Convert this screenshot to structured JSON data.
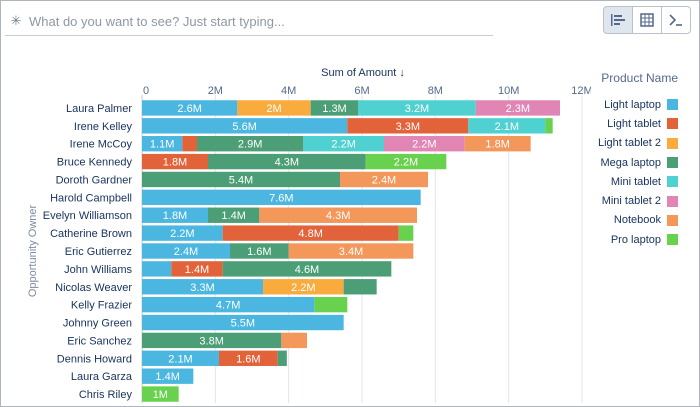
{
  "search": {
    "placeholder": "What do you want to see? Just start typing..."
  },
  "toolbar": {
    "buttons": [
      "chart-icon",
      "table-icon",
      "terminal-icon"
    ]
  },
  "colors": {
    "Light laptop": "#4bb6e0",
    "Light tablet": "#e2633a",
    "Light tablet 2": "#f9ab3e",
    "Mega laptop": "#4c9e76",
    "Mini tablet": "#4fd1d2",
    "Mini tablet 2": "#e186b4",
    "Notebook": "#f3975b",
    "Pro laptop": "#68d14d"
  },
  "legend": {
    "title": "Product Name",
    "items": [
      "Light laptop",
      "Light tablet",
      "Light tablet 2",
      "Mega laptop",
      "Mini tablet",
      "Mini tablet 2",
      "Notebook",
      "Pro laptop"
    ]
  },
  "chart_data": {
    "type": "bar",
    "orientation": "horizontal",
    "stacked": true,
    "xlabel": "Sum of Amount ↓",
    "ylabel": "Opportunity Owner",
    "xlim": [
      0,
      12
    ],
    "x_ticks": [
      "0",
      "2M",
      "4M",
      "6M",
      "8M",
      "10M",
      "12M"
    ],
    "grid": true,
    "legend_position": "right",
    "rows": [
      {
        "owner": "Laura Palmer",
        "segments": [
          {
            "product": "Light laptop",
            "value": 2.6,
            "label": "2.6M"
          },
          {
            "product": "Light tablet 2",
            "value": 2.0,
            "label": "2M"
          },
          {
            "product": "Mega laptop",
            "value": 1.3,
            "label": "1.3M"
          },
          {
            "product": "Mini tablet",
            "value": 3.2,
            "label": "3.2M"
          },
          {
            "product": "Mini tablet 2",
            "value": 2.3,
            "label": "2.3M"
          }
        ]
      },
      {
        "owner": "Irene Kelley",
        "segments": [
          {
            "product": "Light laptop",
            "value": 5.6,
            "label": "5.6M"
          },
          {
            "product": "Light tablet",
            "value": 3.3,
            "label": "3.3M"
          },
          {
            "product": "Mini tablet",
            "value": 2.1,
            "label": "2.1M"
          },
          {
            "product": "Pro laptop",
            "value": 0.2,
            "label": ""
          }
        ]
      },
      {
        "owner": "Irene McCoy",
        "segments": [
          {
            "product": "Light laptop",
            "value": 1.1,
            "label": "1.1M"
          },
          {
            "product": "Light tablet",
            "value": 0.4,
            "label": ""
          },
          {
            "product": "Mega laptop",
            "value": 2.9,
            "label": "2.9M"
          },
          {
            "product": "Mini tablet",
            "value": 2.2,
            "label": "2.2M"
          },
          {
            "product": "Mini tablet 2",
            "value": 2.2,
            "label": "2.2M"
          },
          {
            "product": "Notebook",
            "value": 1.8,
            "label": "1.8M"
          }
        ]
      },
      {
        "owner": "Bruce Kennedy",
        "segments": [
          {
            "product": "Light tablet",
            "value": 1.8,
            "label": "1.8M"
          },
          {
            "product": "Mega laptop",
            "value": 4.3,
            "label": "4.3M"
          },
          {
            "product": "Pro laptop",
            "value": 2.2,
            "label": "2.2M"
          }
        ]
      },
      {
        "owner": "Doroth Gardner",
        "segments": [
          {
            "product": "Mega laptop",
            "value": 5.4,
            "label": "5.4M"
          },
          {
            "product": "Notebook",
            "value": 2.4,
            "label": "2.4M"
          }
        ]
      },
      {
        "owner": "Harold Campbell",
        "segments": [
          {
            "product": "Light laptop",
            "value": 7.6,
            "label": "7.6M"
          }
        ]
      },
      {
        "owner": "Evelyn Williamson",
        "segments": [
          {
            "product": "Light laptop",
            "value": 1.8,
            "label": "1.8M"
          },
          {
            "product": "Mega laptop",
            "value": 1.4,
            "label": "1.4M"
          },
          {
            "product": "Notebook",
            "value": 4.3,
            "label": "4.3M"
          }
        ]
      },
      {
        "owner": "Catherine Brown",
        "segments": [
          {
            "product": "Light laptop",
            "value": 2.2,
            "label": "2.2M"
          },
          {
            "product": "Light tablet",
            "value": 4.8,
            "label": "4.8M"
          },
          {
            "product": "Pro laptop",
            "value": 0.4,
            "label": ""
          }
        ]
      },
      {
        "owner": "Eric Gutierrez",
        "segments": [
          {
            "product": "Light laptop",
            "value": 2.4,
            "label": "2.4M"
          },
          {
            "product": "Mega laptop",
            "value": 1.6,
            "label": "1.6M"
          },
          {
            "product": "Notebook",
            "value": 3.4,
            "label": "3.4M"
          }
        ]
      },
      {
        "owner": "John Williams",
        "segments": [
          {
            "product": "Light laptop",
            "value": 0.8,
            "label": ""
          },
          {
            "product": "Light tablet",
            "value": 1.4,
            "label": "1.4M"
          },
          {
            "product": "Mega laptop",
            "value": 4.6,
            "label": "4.6M"
          }
        ]
      },
      {
        "owner": "Nicolas Weaver",
        "segments": [
          {
            "product": "Light laptop",
            "value": 3.3,
            "label": "3.3M"
          },
          {
            "product": "Light tablet 2",
            "value": 2.2,
            "label": "2.2M"
          },
          {
            "product": "Mega laptop",
            "value": 0.9,
            "label": ""
          }
        ]
      },
      {
        "owner": "Kelly Frazier",
        "segments": [
          {
            "product": "Light laptop",
            "value": 4.7,
            "label": "4.7M"
          },
          {
            "product": "Pro laptop",
            "value": 0.9,
            "label": ""
          }
        ]
      },
      {
        "owner": "Johnny Green",
        "segments": [
          {
            "product": "Light laptop",
            "value": 5.5,
            "label": "5.5M"
          }
        ]
      },
      {
        "owner": "Eric Sanchez",
        "segments": [
          {
            "product": "Mega laptop",
            "value": 3.8,
            "label": "3.8M"
          },
          {
            "product": "Notebook",
            "value": 0.7,
            "label": ""
          }
        ]
      },
      {
        "owner": "Dennis Howard",
        "segments": [
          {
            "product": "Light laptop",
            "value": 2.1,
            "label": "2.1M"
          },
          {
            "product": "Light tablet",
            "value": 1.6,
            "label": "1.6M"
          },
          {
            "product": "Mega laptop",
            "value": 0.25,
            "label": ""
          }
        ]
      },
      {
        "owner": "Laura Garza",
        "segments": [
          {
            "product": "Light laptop",
            "value": 1.4,
            "label": "1.4M"
          }
        ]
      },
      {
        "owner": "Chris Riley",
        "segments": [
          {
            "product": "Pro laptop",
            "value": 1.0,
            "label": "1M"
          }
        ]
      }
    ]
  }
}
